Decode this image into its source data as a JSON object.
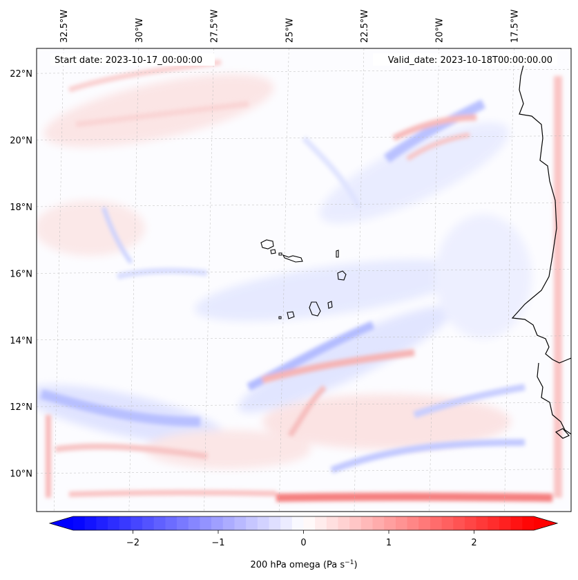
{
  "map": {
    "start_date": "Start date: 2023-10-17_00:00:00",
    "valid_date": "Valid_date: 2023-10-18T00:00:00.00",
    "lon_ticks": [
      "32.5°W",
      "30°W",
      "27.5°W",
      "25°W",
      "22.5°W",
      "20°W",
      "17.5°W"
    ],
    "lat_ticks": [
      "22°N",
      "20°N",
      "18°N",
      "16°N",
      "14°N",
      "12°N",
      "10°N"
    ],
    "lon_values": [
      -32.5,
      -30,
      -27.5,
      -25,
      -22.5,
      -20,
      -17.5
    ],
    "lat_values": [
      22,
      20,
      18,
      16,
      14,
      12,
      10
    ],
    "extent": {
      "lon_min": -33.4,
      "lon_max": -15.6,
      "lat_min": 8.85,
      "lat_max": 22.75
    },
    "gridlines": true,
    "features": [
      "coastline-west-africa",
      "cape-verde-islands"
    ]
  },
  "colorbar": {
    "label": "200 hPa omega (Pa s",
    "label_sup": "−1",
    "label_end": ")",
    "ticks": [
      "−2",
      "−1",
      "0",
      "1",
      "2"
    ],
    "tick_values": [
      -2,
      -1,
      0,
      1,
      2
    ],
    "range": [
      -2.7,
      2.7
    ],
    "extend": "both",
    "cmap": "bwr",
    "colors": {
      "min": "#0000ff",
      "mid": "#ffffff",
      "max": "#ff0000"
    }
  }
}
